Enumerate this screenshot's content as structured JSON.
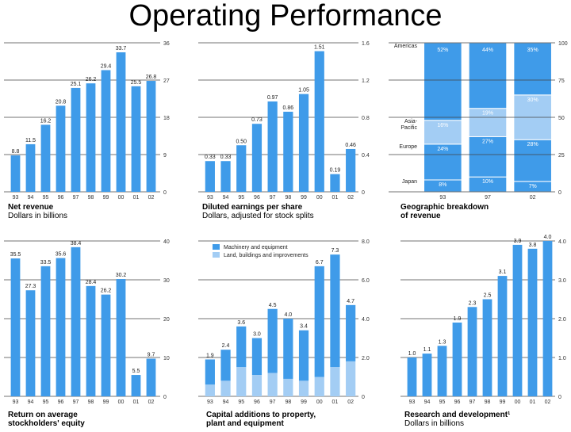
{
  "title": "Operating Performance",
  "colors": {
    "primary": "#3f9be9",
    "secondary": "#a3cdf4"
  },
  "captions": {
    "net_revenue": [
      "Net revenue",
      "Dollars in billions"
    ],
    "eps": [
      "Diluted earnings per share",
      "Dollars, adjusted for stock splits"
    ],
    "geo": [
      "Geographic breakdown",
      "of revenue"
    ],
    "roe": [
      "Return on average",
      "stockholders' equity"
    ],
    "capex": [
      "Capital additions to property,",
      "plant and equipment"
    ],
    "rnd": [
      "Research and development¹",
      "Dollars in billions"
    ]
  },
  "chart_data": [
    {
      "id": "net_revenue",
      "type": "bar",
      "categories": [
        "93",
        "94",
        "95",
        "96",
        "97",
        "98",
        "99",
        "00",
        "01",
        "02"
      ],
      "values": [
        8.8,
        11.5,
        16.2,
        20.8,
        25.1,
        26.2,
        29.4,
        33.7,
        25.5,
        26.8
      ],
      "value_labels": [
        "8.8",
        "11.5",
        "16.2",
        "20.8",
        "25.1",
        "26.2",
        "29.4",
        "33.7",
        "25.5",
        "26.8"
      ],
      "yticks": [
        "36",
        "27",
        "18",
        "9",
        "0"
      ],
      "ylim": [
        0,
        36
      ]
    },
    {
      "id": "eps",
      "type": "bar",
      "categories": [
        "93",
        "94",
        "95",
        "96",
        "97",
        "98",
        "99",
        "00",
        "01",
        "02"
      ],
      "values": [
        0.33,
        0.33,
        0.5,
        0.73,
        0.97,
        0.86,
        1.05,
        1.51,
        0.19,
        0.46
      ],
      "value_labels": [
        "0.33",
        "0.33",
        "0.50",
        "0.73",
        "0.97",
        "0.86",
        "1.05",
        "1.51",
        "0.19",
        "0.46"
      ],
      "yticks": [
        "1.6",
        "1.2",
        "0.8",
        "0.4",
        "0"
      ],
      "ylim": [
        0,
        1.6
      ]
    },
    {
      "id": "geo",
      "type": "bar",
      "stacked": true,
      "categories": [
        "93",
        "97",
        "02"
      ],
      "series": [
        {
          "name": "Japan",
          "values": [
            8,
            10,
            7
          ],
          "labels": [
            "8%",
            "10%",
            "7%"
          ]
        },
        {
          "name": "Europe",
          "values": [
            24,
            27,
            28
          ],
          "labels": [
            "24%",
            "27%",
            "28%"
          ]
        },
        {
          "name": "Asia-Pacific",
          "values": [
            16,
            19,
            30
          ],
          "labels": [
            "16%",
            "19%",
            "30%"
          ]
        },
        {
          "name": "Americas",
          "values": [
            52,
            44,
            35
          ],
          "labels": [
            "52%",
            "44%",
            "35%"
          ]
        }
      ],
      "left_labels": [
        "Americas",
        "Asia-Pacific",
        "Europe",
        "Japan"
      ],
      "yticks": [
        "100",
        "75",
        "50",
        "25",
        "0"
      ],
      "ylim": [
        0,
        100
      ]
    },
    {
      "id": "roe",
      "type": "bar",
      "categories": [
        "93",
        "94",
        "95",
        "96",
        "97",
        "98",
        "99",
        "00",
        "01",
        "02"
      ],
      "values": [
        35.5,
        27.3,
        33.5,
        35.6,
        38.4,
        28.4,
        26.2,
        30.2,
        5.5,
        9.7
      ],
      "value_labels": [
        "35.5",
        "27.3",
        "33.5",
        "35.6",
        "38.4",
        "28.4",
        "26.2",
        "30.2",
        "5.5",
        "9.7"
      ],
      "yticks": [
        "40",
        "30",
        "20",
        "10",
        "0"
      ],
      "ylim": [
        0,
        40
      ]
    },
    {
      "id": "capex",
      "type": "bar",
      "stacked": true,
      "categories": [
        "93",
        "94",
        "95",
        "96",
        "97",
        "98",
        "99",
        "00",
        "01",
        "02"
      ],
      "totals": [
        1.9,
        2.4,
        3.6,
        3.0,
        4.5,
        4.0,
        3.4,
        6.7,
        7.3,
        4.7
      ],
      "total_labels": [
        "1.9",
        "2.4",
        "3.6",
        "3.0",
        "4.5",
        "4.0",
        "3.4",
        "6.7",
        "7.3",
        "4.7"
      ],
      "land_buildings": [
        0.6,
        0.8,
        1.5,
        1.1,
        1.2,
        0.9,
        0.8,
        1.0,
        1.5,
        1.8
      ],
      "legend": [
        "Machinery and equipment",
        "Land, buildings and improvements"
      ],
      "yticks": [
        "8.0",
        "6.0",
        "4.0",
        "2.0",
        "0"
      ],
      "ylim": [
        0,
        8
      ]
    },
    {
      "id": "rnd",
      "type": "bar",
      "categories": [
        "93",
        "94",
        "95",
        "96",
        "97",
        "98",
        "99",
        "00",
        "01",
        "02"
      ],
      "values": [
        1.0,
        1.1,
        1.3,
        1.9,
        2.3,
        2.5,
        3.1,
        3.9,
        3.8,
        4.0
      ],
      "value_labels": [
        "1.0",
        "1.1",
        "1.3",
        "1.9",
        "2.3",
        "2.5",
        "3.1",
        "3.9",
        "3.8",
        "4.0"
      ],
      "yticks": [
        "4.0",
        "3.0",
        "2.0",
        "1.0",
        "0"
      ],
      "ylim": [
        0,
        4
      ]
    }
  ]
}
